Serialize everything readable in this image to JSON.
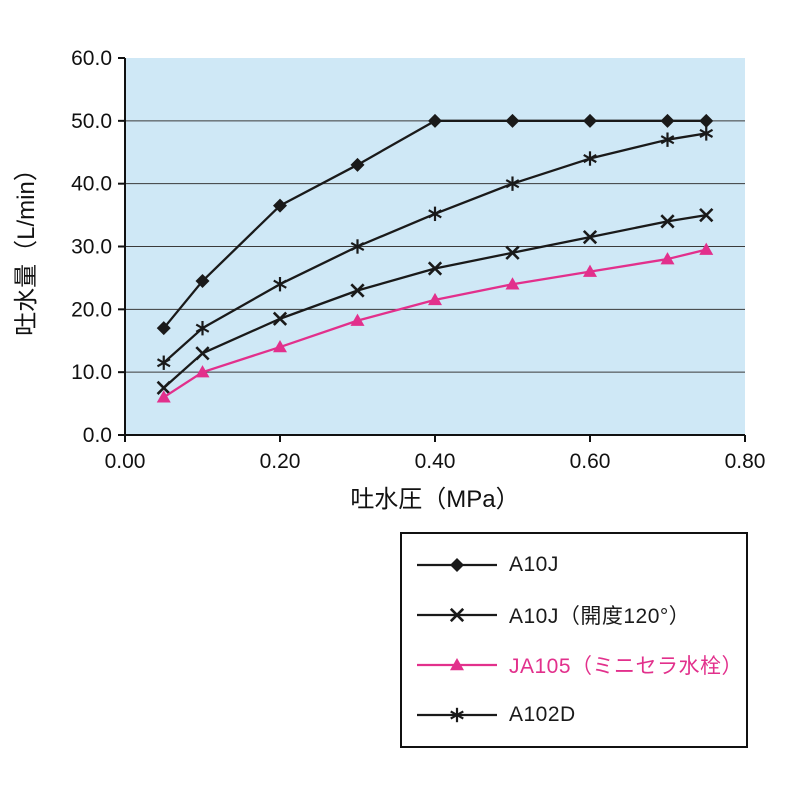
{
  "chart_data": {
    "type": "line",
    "title": "",
    "xlabel": "吐水圧（MPa）",
    "ylabel": "吐水量（L/min）",
    "xlim": [
      0,
      0.8
    ],
    "ylim": [
      0,
      60
    ],
    "x_ticks": [
      "0.00",
      "0.20",
      "0.40",
      "0.60",
      "0.80"
    ],
    "y_ticks": [
      "0.0",
      "10.0",
      "20.0",
      "30.0",
      "40.0",
      "50.0",
      "60.0"
    ],
    "grid": true,
    "plot_bg": "#cfe8f6",
    "axis_color": "#111111",
    "grid_color": "#3a3a3a",
    "x": [
      0.05,
      0.1,
      0.2,
      0.3,
      0.4,
      0.5,
      0.6,
      0.7,
      0.75
    ],
    "series": [
      {
        "name": "A10J",
        "marker": "diamond",
        "color": "#1a1a1a",
        "values": [
          17.0,
          24.5,
          36.5,
          43.0,
          50.0,
          50.0,
          50.0,
          50.0,
          50.0
        ]
      },
      {
        "name": "A10J（開度120°）",
        "marker": "x",
        "color": "#1a1a1a",
        "values": [
          7.5,
          13.0,
          18.5,
          23.0,
          26.5,
          29.0,
          31.5,
          34.0,
          35.0
        ]
      },
      {
        "name": "JA105（ミニセラ水栓）",
        "marker": "triangle",
        "color": "#e2308c",
        "values": [
          6.0,
          10.0,
          14.0,
          18.2,
          21.5,
          24.0,
          26.0,
          28.0,
          29.5
        ]
      },
      {
        "name": "A102D",
        "marker": "asterisk",
        "color": "#1a1a1a",
        "values": [
          11.5,
          17.0,
          24.0,
          30.0,
          35.2,
          40.0,
          44.0,
          47.0,
          48.0
        ]
      }
    ],
    "legend_position": "bottom-right-outside"
  },
  "legend": {
    "items": [
      {
        "label": "A10J",
        "marker": "diamond",
        "color": "#1a1a1a"
      },
      {
        "label": "A10J（開度120°）",
        "marker": "x",
        "color": "#1a1a1a"
      },
      {
        "label": "JA105（ミニセラ水栓）",
        "marker": "triangle",
        "color": "#e2308c"
      },
      {
        "label": "A102D",
        "marker": "asterisk",
        "color": "#1a1a1a"
      }
    ]
  }
}
